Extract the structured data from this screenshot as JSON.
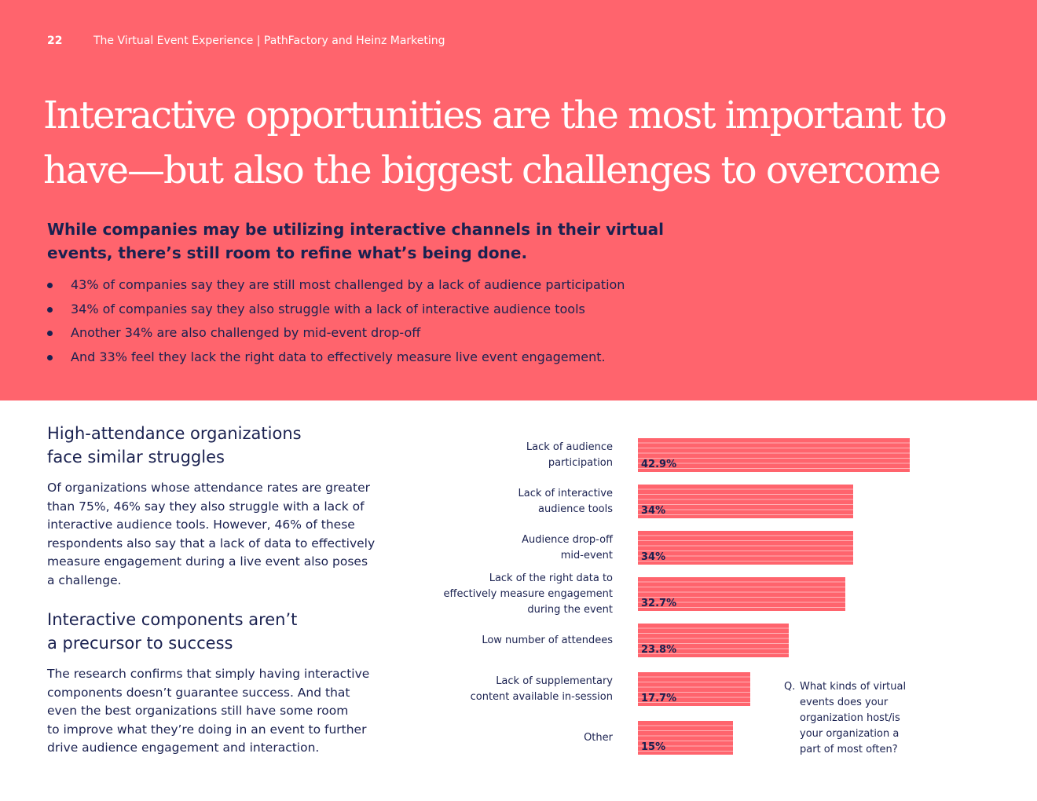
{
  "header": {
    "page_number": "22",
    "running_title": "The Virtual Event Experience | PathFactory and Heinz Marketing"
  },
  "hero": {
    "headline_line1": "Interactive opportunities are the most important to",
    "headline_line2": "have—but also the biggest challenges to overcome",
    "lead_line1": "While companies may be utilizing interactive channels in their virtual",
    "lead_line2": "events, there’s still room to refine what’s being done.",
    "bullets": [
      "43% of companies say they are still most challenged by a lack of audience participation",
      "34% of companies say they also struggle with a lack of interactive audience tools",
      "Another 34% are also challenged by mid-event drop-off",
      "And 33% feel they lack the right data to effectively measure live event engagement."
    ]
  },
  "sections": [
    {
      "title_line1": "High-attendance organizations",
      "title_line2": "face similar struggles",
      "body_lines": [
        "Of organizations whose attendance rates are greater",
        "than 75%, 46% say they also struggle with a lack of",
        "interactive audience tools. However, 46% of these",
        "respondents also say that a lack of data to effectively",
        "measure engagement during a live event also poses",
        "a challenge."
      ]
    },
    {
      "title_line1": "Interactive components aren’t",
      "title_line2": "a precursor to success",
      "body_lines": [
        "The research confirms that simply having interactive",
        "components doesn’t guarantee success. And that",
        "even the best organizations still have some room",
        "to improve what they’re doing in an event to further",
        "drive audience engagement and interaction."
      ]
    }
  ],
  "chart_data": {
    "type": "bar",
    "orientation": "horizontal",
    "categories": [
      [
        "Lack of audience",
        "participation"
      ],
      [
        "Lack of interactive",
        "audience tools"
      ],
      [
        "Audience drop-off",
        "mid-event"
      ],
      [
        "Lack of the right data to",
        "effectively measure engagement",
        "during the event"
      ],
      [
        "Low number of attendees"
      ],
      [
        "Lack of supplementary",
        "content available in-session"
      ],
      [
        "Other"
      ]
    ],
    "values": [
      42.9,
      34,
      34,
      32.7,
      23.8,
      17.7,
      15
    ],
    "value_labels": [
      "42.9%",
      "34%",
      "34%",
      "32.7%",
      "23.8%",
      "17.7%",
      "15%"
    ],
    "xlim": [
      0,
      42.9
    ],
    "question_marker": "Q.",
    "question_lines": [
      "What kinds of virtual",
      "events does your",
      "organization host/is",
      "your organization a",
      "part of most often?"
    ],
    "bar_color": "#ff646d"
  },
  "colors": {
    "hero_background": "#ff646d",
    "text_navy": "#1a2150",
    "white": "#ffffff"
  }
}
